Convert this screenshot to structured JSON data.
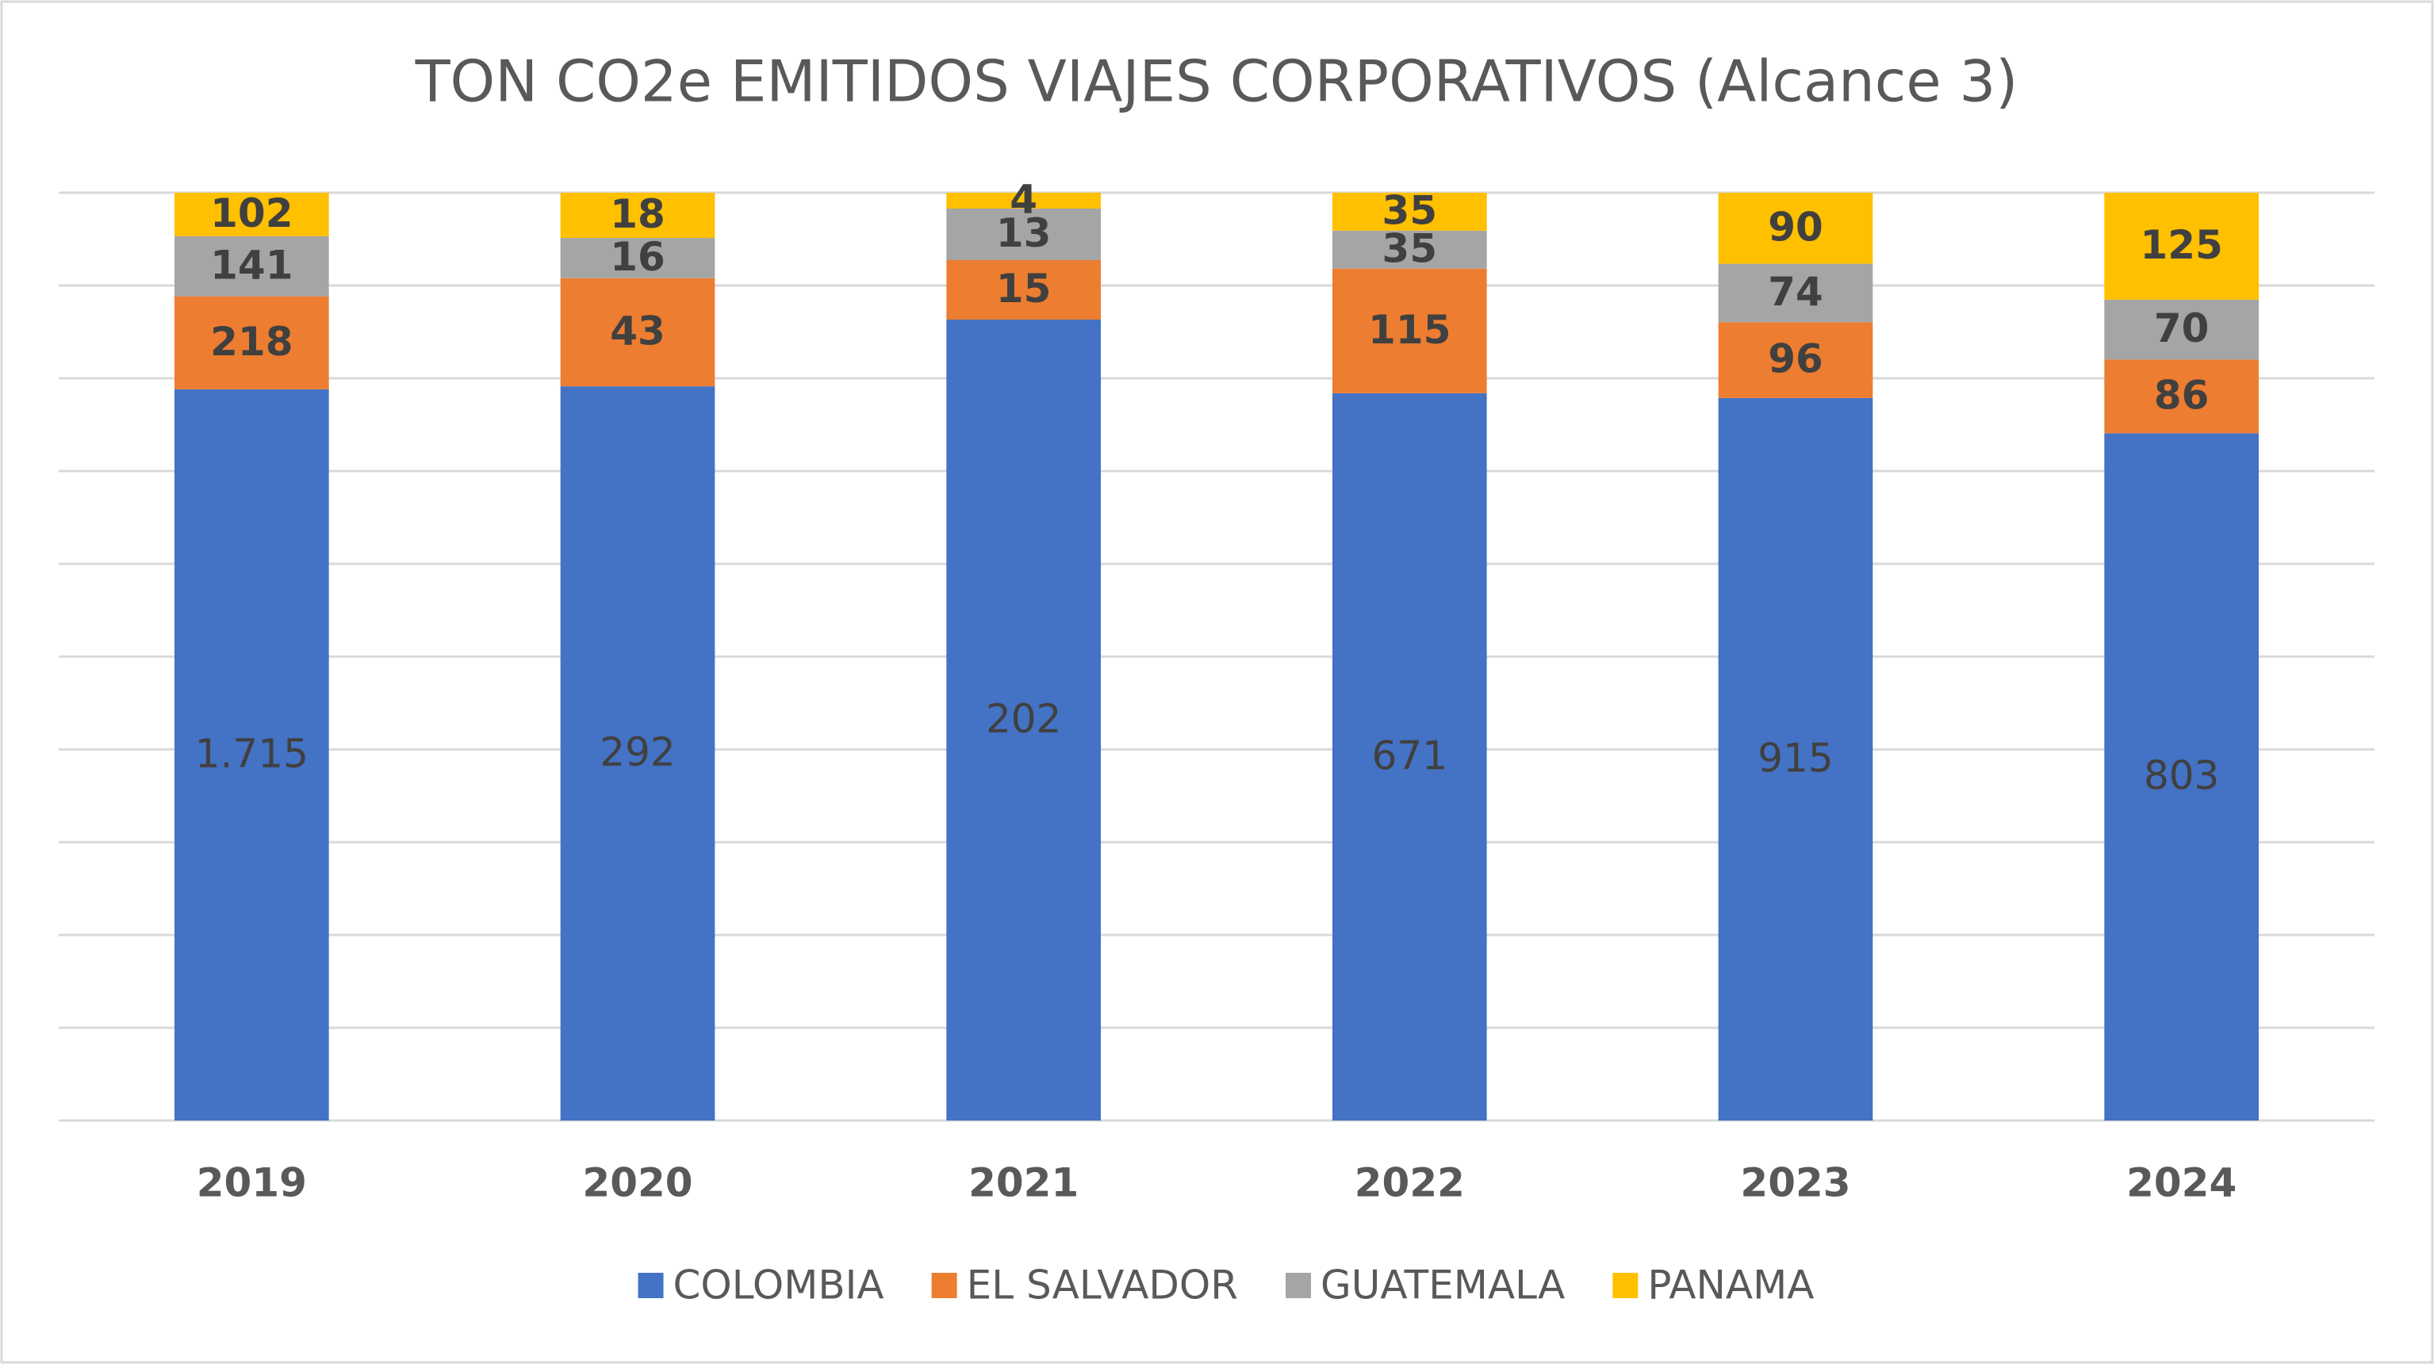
{
  "chart_data": {
    "type": "bar",
    "stacking": "percent",
    "title": "TON CO2e EMITIDOS VIAJES CORPORATIVOS (Alcance 3)",
    "categories": [
      "2019",
      "2020",
      "2021",
      "2022",
      "2023",
      "2024"
    ],
    "series": [
      {
        "name": "COLOMBIA",
        "color": "#4472c4",
        "values": [
          1715,
          292,
          202,
          671,
          915,
          803
        ],
        "value_labels": [
          "1.715",
          "292",
          "202",
          "671",
          "915",
          "803"
        ]
      },
      {
        "name": "EL SALVADOR",
        "color": "#ed7d31",
        "values": [
          218,
          43,
          15,
          115,
          96,
          86
        ]
      },
      {
        "name": "GUATEMALA",
        "color": "#a5a5a5",
        "values": [
          141,
          16,
          13,
          35,
          74,
          70
        ]
      },
      {
        "name": "PANAMA",
        "color": "#ffc000",
        "values": [
          102,
          18,
          4,
          35,
          90,
          125
        ]
      }
    ],
    "ylim": [
      0,
      100
    ],
    "yticks": [
      0,
      10,
      20,
      30,
      40,
      50,
      60,
      70,
      80,
      90,
      100
    ],
    "grid": true,
    "legend": "bottom"
  }
}
